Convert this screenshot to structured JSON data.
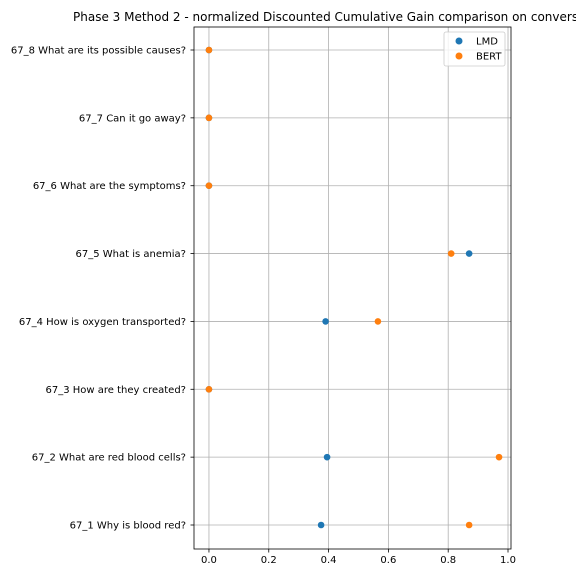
{
  "chart_data": {
    "type": "scatter",
    "title": "Phase 3 Method 2 - normalized Discounted Cumulative Gain comparison on convers",
    "xlabel": "",
    "ylabel": "",
    "xlim": [
      -0.05,
      1.01
    ],
    "xticks": [
      0.0,
      0.2,
      0.4,
      0.6,
      0.8,
      1.0
    ],
    "xtick_labels": [
      "0.0",
      "0.2",
      "0.4",
      "0.6",
      "0.8",
      "1.0"
    ],
    "categories": [
      "67_1 Why is blood red?",
      "67_2 What are red blood cells?",
      "67_3 How are they created?",
      "67_4 How is oxygen transported?",
      "67_5 What is anemia?",
      "67_6 What are the symptoms?",
      "67_7 Can it go away?",
      "67_8 What are its possible causes?"
    ],
    "series": [
      {
        "name": "LMD",
        "color": "#1f77b4",
        "values": [
          0.375,
          0.395,
          0.0,
          0.39,
          0.87,
          0.0,
          0.0,
          0.0
        ]
      },
      {
        "name": "BERT",
        "color": "#ff7f0e",
        "values": [
          0.87,
          0.97,
          0.0,
          0.565,
          0.81,
          0.0,
          0.0,
          0.0
        ]
      }
    ],
    "grid": true,
    "legend_position": "top-right"
  }
}
